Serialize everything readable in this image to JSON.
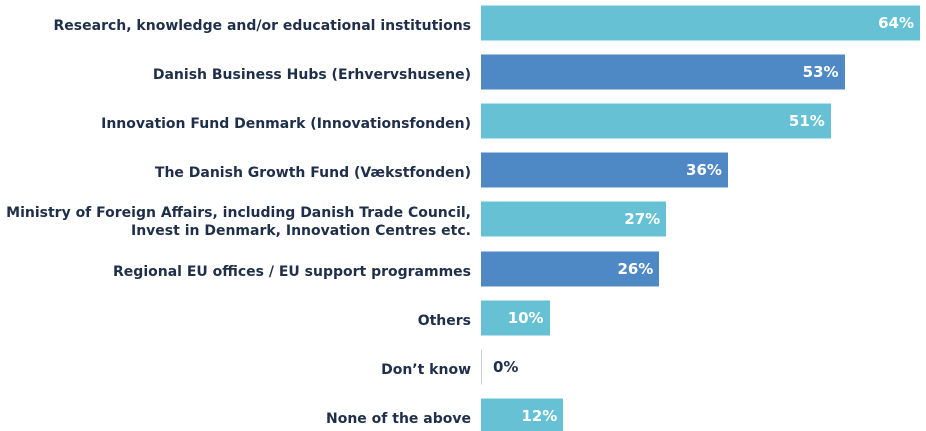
{
  "chart_data": {
    "type": "bar",
    "orientation": "horizontal",
    "categories": [
      "Research, knowledge and/or educational institutions",
      "Danish Business Hubs (Erhvervshusene)",
      "Innovation Fund Denmark (Innovationsfonden)",
      "The Danish Growth Fund (Vækstfonden)",
      "Ministry of Foreign Affairs, including Danish Trade Council,\nInvest in Denmark, Innovation Centres etc.",
      "Regional EU offices / EU support programmes",
      "Others",
      "Don’t know",
      "None of the above"
    ],
    "values": [
      64,
      53,
      51,
      36,
      27,
      26,
      10,
      0,
      12
    ],
    "value_labels": [
      "64%",
      "53%",
      "51%",
      "36%",
      "27%",
      "26%",
      "10%",
      "0%",
      "12%"
    ],
    "colors": [
      "#67c1d5",
      "#4e88c5",
      "#67c1d5",
      "#4e88c5",
      "#67c1d5",
      "#4e88c5",
      "#67c1d5",
      "#67c1d5",
      "#67c1d5"
    ]
  }
}
